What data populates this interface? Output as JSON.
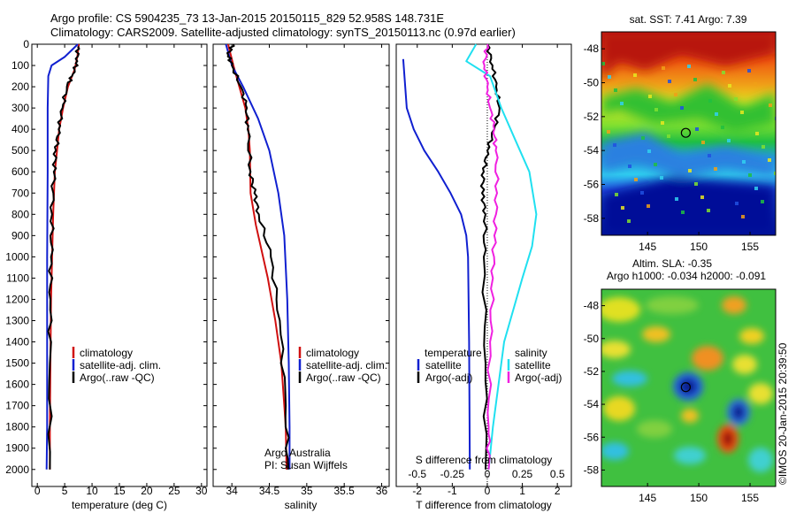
{
  "figure": {
    "title_line1": "Argo profile: CS 5904235_73 13-Jan-2015 20150115_829 52.958S 148.731E",
    "title_line2": "Climatology: CARS2009. Satellite-adjusted climatology: synTS_20150113.nc (0.97d earlier)",
    "credit": "©IMOS 20-Jan-2015 20:39:50"
  },
  "colors": {
    "climatology": "#d01010",
    "satellite": "#1020d0",
    "argo": "#000000",
    "salinity_sat": "#20e0f0",
    "salinity_argo": "#f020e0"
  },
  "chart_data": [
    {
      "type": "line",
      "id": "temperature",
      "xlabel": "temperature (deg C)",
      "ylabel": "",
      "xlim": [
        -1,
        31
      ],
      "ylim": [
        2080,
        0
      ],
      "xticks": [
        0,
        5,
        10,
        15,
        20,
        25,
        30
      ],
      "yticks": [
        0,
        100,
        200,
        300,
        400,
        500,
        600,
        700,
        800,
        900,
        1000,
        1100,
        1200,
        1300,
        1400,
        1500,
        1600,
        1700,
        1800,
        1900,
        2000
      ],
      "legend": [
        "climatology",
        "satellite-adj. clim.",
        "Argo(..raw -QC)"
      ],
      "series": [
        {
          "name": "climatology",
          "color": "#d01010",
          "x": [
            7.6,
            7.3,
            6.8,
            5.6,
            4.7,
            4.0,
            3.6,
            3.2,
            2.9,
            2.7,
            2.5,
            2.4,
            2.3,
            2.3
          ],
          "y": [
            0,
            60,
            120,
            200,
            300,
            400,
            500,
            600,
            800,
            1000,
            1200,
            1500,
            1800,
            2000
          ]
        },
        {
          "name": "satellite-adj. clim.",
          "color": "#1020d0",
          "x": [
            7.4,
            5.0,
            2.6,
            2.0,
            1.9,
            1.9,
            1.8,
            1.8,
            1.8,
            1.7
          ],
          "y": [
            0,
            60,
            100,
            150,
            300,
            600,
            1000,
            1400,
            1800,
            2000
          ]
        },
        {
          "name": "Argo(..raw -QC)",
          "color": "#000000",
          "x": [
            7.4,
            7.3,
            6.5,
            5.4,
            4.6,
            3.9,
            3.4,
            3.0,
            2.7,
            2.5,
            2.4,
            2.3,
            2.3
          ],
          "y": [
            10,
            80,
            140,
            200,
            300,
            400,
            500,
            600,
            800,
            1000,
            1200,
            1500,
            2000
          ]
        }
      ]
    },
    {
      "type": "line",
      "id": "salinity",
      "xlabel": "salinity",
      "ylabel": "",
      "xlim": [
        33.75,
        36.1
      ],
      "ylim": [
        2080,
        0
      ],
      "xticks": [
        34,
        34.5,
        35,
        35.5,
        36
      ],
      "legend": [
        "climatology",
        "satellite-adj. clim.",
        "Argo(..raw -QC)"
      ],
      "annotation": [
        "Argo Australia",
        "PI: Susan Wijffels"
      ],
      "series": [
        {
          "name": "climatology",
          "color": "#d01010",
          "x": [
            33.95,
            34.02,
            34.1,
            34.18,
            34.22,
            34.24,
            34.25,
            34.32,
            34.48,
            34.58,
            34.66,
            34.72,
            34.73
          ],
          "y": [
            0,
            100,
            200,
            300,
            400,
            500,
            700,
            850,
            1100,
            1300,
            1500,
            1800,
            2000
          ]
        },
        {
          "name": "satellite-adj. clim.",
          "color": "#1020d0",
          "x": [
            33.92,
            34.0,
            34.15,
            34.35,
            34.5,
            34.62,
            34.7,
            34.74,
            34.76,
            34.77,
            34.77
          ],
          "y": [
            0,
            100,
            200,
            350,
            500,
            700,
            900,
            1200,
            1500,
            1800,
            2000
          ]
        },
        {
          "name": "Argo(..raw -QC)",
          "color": "#000000",
          "x": [
            34.02,
            33.95,
            34.0,
            34.12,
            34.2,
            34.21,
            34.25,
            34.3,
            34.36,
            34.52,
            34.64,
            34.72,
            34.75
          ],
          "y": [
            0,
            50,
            100,
            200,
            300,
            400,
            600,
            700,
            800,
            1000,
            1300,
            1700,
            2000
          ]
        }
      ]
    },
    {
      "type": "line",
      "id": "difference",
      "xlabel": "T difference from climatology",
      "xlabel_top": "S difference from climatology",
      "xlim": [
        -2.6,
        2.4
      ],
      "ylim": [
        2080,
        0
      ],
      "xticks": [
        -2,
        -1,
        0,
        1,
        2
      ],
      "xticks_top": [
        -0.5,
        -0.25,
        0,
        0.25,
        0.5
      ],
      "legend_groups": [
        {
          "title": "temperature",
          "items": [
            "satellite",
            "Argo(-adj)"
          ]
        },
        {
          "title": "salinity",
          "items": [
            "satellite",
            "Argo(-adj)"
          ]
        }
      ],
      "series": [
        {
          "name": "temperature satellite",
          "color": "#1020d0",
          "x": [
            -2.4,
            -2.3,
            -2.1,
            -1.8,
            -1.4,
            -1.05,
            -0.75,
            -0.6,
            -0.55,
            -0.52,
            -0.5
          ],
          "y": [
            70,
            300,
            400,
            500,
            600,
            700,
            800,
            900,
            1000,
            1400,
            2000
          ]
        },
        {
          "name": "temperature Argo(-adj)",
          "color": "#000000",
          "x": [
            0.0,
            0.15,
            0.25,
            0.35,
            0.2,
            0.0,
            -0.1,
            -0.15,
            -0.05,
            -0.1,
            -0.05,
            -0.05
          ],
          "y": [
            0,
            100,
            200,
            300,
            400,
            500,
            600,
            700,
            800,
            1000,
            1500,
            2000
          ]
        },
        {
          "name": "salinity satellite",
          "color": "#20e0f0",
          "x": [
            -0.08,
            -0.15,
            0.02,
            0.1,
            0.2,
            0.3,
            0.35,
            0.32,
            0.25,
            0.12,
            0.04,
            0.01
          ],
          "y": [
            0,
            80,
            150,
            300,
            450,
            600,
            800,
            950,
            1100,
            1400,
            1800,
            2000
          ]
        },
        {
          "name": "salinity Argo(-adj)",
          "color": "#f020e0",
          "x": [
            0.0,
            -0.02,
            0.0,
            0.02,
            0.05,
            0.06,
            0.07,
            0.05,
            0.04,
            0.02,
            0.01,
            0.01
          ],
          "y": [
            0,
            100,
            200,
            300,
            400,
            500,
            700,
            900,
            1100,
            1400,
            1800,
            2000
          ]
        }
      ]
    },
    {
      "type": "heatmap",
      "id": "sst-map",
      "title": "sat. SST: 7.41 Argo: 7.39",
      "xticks": [
        145,
        150,
        155
      ],
      "yticks": [
        -48,
        -50,
        -52,
        -54,
        -56,
        -58
      ],
      "xlim": [
        140.5,
        157.5
      ],
      "ylim": [
        -59,
        -47
      ],
      "marker": {
        "lon": 148.731,
        "lat": -52.958
      }
    },
    {
      "type": "heatmap",
      "id": "sla-map",
      "title_line1": "Altim. SLA: -0.35",
      "title_line2": "Argo h1000: -0.034 h2000: -0.091",
      "xticks": [
        145,
        150,
        155
      ],
      "yticks": [
        -48,
        -50,
        -52,
        -54,
        -56,
        -58
      ],
      "xlim": [
        140.5,
        157.5
      ],
      "ylim": [
        -59,
        -47
      ],
      "marker": {
        "lon": 148.731,
        "lat": -52.958
      }
    }
  ]
}
